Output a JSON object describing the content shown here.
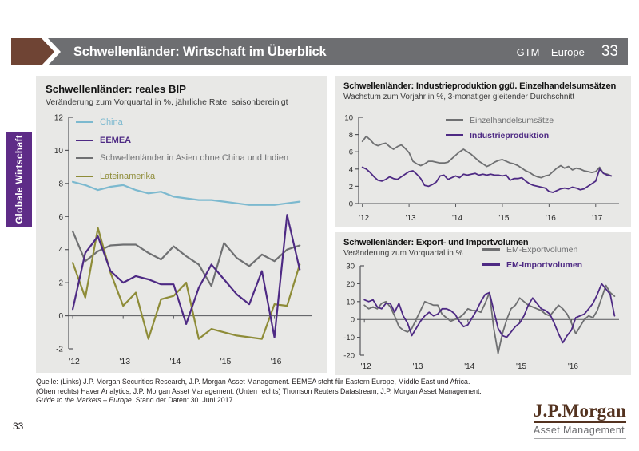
{
  "header": {
    "title": "Schwellenländer: Wirtschaft im Überblick",
    "edition": "GTM – Europe",
    "page": "33",
    "bar_color": "#6d6e71",
    "chevron_color": "#6F4434"
  },
  "side_tab": {
    "label": "Globale Wirtschaft",
    "color": "#5E2C87"
  },
  "footer": {
    "line1": "Quelle: (Links) J.P. Morgan Securities Research, J.P. Morgan Asset Management. EEMEA steht für Eastern Europe, Middle East und Africa.",
    "line2": "(Oben rechts) Haver Analytics, J.P. Morgan Asset Management. (Unten rechts) Thomson Reuters Datastream, J.P. Morgan Asset Management.",
    "line3_italic": "Guide to the Markets – Europe.",
    "line3_rest": " Stand der Daten: 30. Juni 2017.",
    "page_number": "33"
  },
  "logo": {
    "brand": "J.P.Morgan",
    "division": "Asset Management",
    "brand_color": "#53321F"
  },
  "chart_data": [
    {
      "type": "line",
      "title": "Schwellenländer: reales BIP",
      "subtitle": "Veränderung zum Vorquartal in %, jährliche Rate, saisonbereinigt",
      "ylim": [
        -2,
        12
      ],
      "yticks": [
        -2,
        0,
        2,
        4,
        6,
        8,
        10,
        12
      ],
      "xlim": [
        2011.92,
        2016.75
      ],
      "x_ticks": [
        2012,
        2013,
        2014,
        2015,
        2016
      ],
      "x_tick_labels": [
        "'12",
        "'13",
        "'14",
        "'15",
        "'16"
      ],
      "x_start": 2012.0,
      "x_step": 0.25,
      "grid": false,
      "legend_position": "upper-left-inside",
      "series": [
        {
          "name": "China",
          "color": "#7CB9CF",
          "bold": false,
          "values": [
            8.1,
            7.9,
            7.6,
            7.8,
            7.9,
            7.6,
            7.4,
            7.5,
            7.2,
            7.1,
            7.0,
            7.0,
            6.9,
            6.8,
            6.7,
            6.7,
            6.7,
            6.8,
            6.9
          ]
        },
        {
          "name": "EEMEA",
          "color": "#4E2A84",
          "bold": true,
          "values": [
            0.4,
            3.8,
            4.8,
            2.7,
            2.0,
            2.4,
            2.2,
            1.9,
            1.9,
            -0.5,
            1.7,
            3.1,
            2.2,
            1.3,
            0.7,
            2.7,
            -1.3,
            6.1,
            2.8
          ]
        },
        {
          "name": "Schwellenländer in Asien ohne China und Indien",
          "color": "#6F7072",
          "bold": false,
          "values": [
            5.1,
            3.3,
            3.9,
            4.25,
            4.3,
            4.3,
            3.8,
            3.4,
            4.2,
            3.6,
            3.1,
            1.8,
            4.4,
            3.5,
            3.0,
            3.7,
            3.3,
            4.0,
            4.25
          ]
        },
        {
          "name": "Lateinamerika",
          "color": "#8E8C38",
          "bold": false,
          "values": [
            3.2,
            1.1,
            5.3,
            2.6,
            0.6,
            1.4,
            -1.4,
            1.0,
            1.2,
            2.0,
            -1.4,
            -0.8,
            -1.0,
            -1.2,
            -1.3,
            -1.4,
            0.7,
            0.6,
            3.1
          ]
        }
      ]
    },
    {
      "type": "line",
      "title": "Schwellenländer: Industrieproduktion ggü. Einzelhandelsumsätzen",
      "subtitle": "Wachstum zum Vorjahr in %, 3-monatiger gleitender Durchschnitt",
      "ylim": [
        0,
        10
      ],
      "yticks": [
        0,
        2,
        4,
        6,
        8,
        10
      ],
      "xlim": [
        2011.92,
        2017.5
      ],
      "x_ticks": [
        2012,
        2013,
        2014,
        2015,
        2016,
        2017
      ],
      "x_tick_labels": [
        "'12",
        "'13",
        "'14",
        "'15",
        "'16",
        "'17"
      ],
      "x_start": 2012.0,
      "x_step": 0.083333,
      "grid": false,
      "legend_position": "upper-center-inside",
      "series": [
        {
          "name": "Einzelhandelsumsätze",
          "color": "#6F7072",
          "bold": false,
          "values": [
            7.2,
            7.8,
            7.4,
            6.9,
            6.7,
            6.9,
            7.0,
            6.6,
            6.3,
            6.6,
            6.8,
            6.4,
            5.9,
            4.9,
            4.6,
            4.4,
            4.6,
            4.9,
            4.9,
            4.8,
            4.7,
            4.7,
            4.8,
            5.2,
            5.6,
            6.0,
            6.3,
            6.0,
            5.7,
            5.3,
            4.9,
            4.6,
            4.3,
            4.5,
            4.8,
            5.0,
            5.1,
            4.9,
            4.7,
            4.6,
            4.4,
            4.1,
            3.8,
            3.6,
            3.3,
            3.1,
            3.0,
            3.2,
            3.3,
            3.7,
            4.1,
            4.4,
            4.1,
            4.3,
            3.9,
            4.1,
            4.0,
            3.8,
            3.7,
            3.6,
            3.7,
            4.2,
            3.5,
            3.4,
            3.2
          ]
        },
        {
          "name": "Industrieproduktion",
          "color": "#4E2A84",
          "bold": true,
          "values": [
            4.2,
            4.0,
            3.6,
            3.1,
            2.7,
            2.6,
            2.8,
            3.1,
            2.9,
            2.8,
            3.1,
            3.4,
            3.7,
            3.8,
            3.4,
            2.9,
            2.1,
            2.0,
            2.2,
            2.5,
            3.2,
            3.3,
            2.8,
            3.0,
            3.2,
            3.0,
            3.4,
            3.3,
            3.4,
            3.5,
            3.3,
            3.4,
            3.3,
            3.4,
            3.3,
            3.3,
            3.2,
            3.3,
            2.7,
            2.9,
            2.9,
            3.0,
            2.6,
            2.3,
            2.1,
            2.0,
            1.9,
            1.8,
            1.4,
            1.3,
            1.5,
            1.7,
            1.8,
            1.7,
            1.9,
            1.8,
            1.6,
            1.7,
            2.0,
            2.3,
            2.6,
            4.0,
            3.5,
            3.3,
            3.2
          ]
        }
      ]
    },
    {
      "type": "line",
      "title": "Schwellenländer: Export- und Importvolumen",
      "subtitle": "Veränderung zum Vorquartal in %",
      "ylim": [
        -20,
        30
      ],
      "yticks": [
        -20,
        -10,
        0,
        10,
        20,
        30
      ],
      "xlim": [
        2011.92,
        2016.92
      ],
      "x_ticks": [
        2012,
        2013,
        2014,
        2015,
        2016
      ],
      "x_tick_labels": [
        "'12",
        "'13",
        "'14",
        "'15",
        "'16"
      ],
      "x_start": 2012.0,
      "x_step": 0.083333,
      "grid": false,
      "legend_position": "upper-right-inside",
      "series": [
        {
          "name": "EM-Exportvolumen",
          "color": "#6F7072",
          "bold": false,
          "values": [
            8,
            6,
            7,
            6,
            9,
            10,
            7,
            2,
            -4,
            -6,
            -7,
            -5,
            0,
            5,
            10,
            9,
            8,
            8,
            3,
            1,
            -1,
            0,
            1,
            3,
            6,
            5,
            5,
            4,
            9,
            15,
            -5,
            -19,
            -8,
            0,
            6,
            8,
            12,
            10,
            8,
            7,
            6,
            5,
            3,
            2,
            5,
            8,
            6,
            3,
            -2,
            -8,
            -4,
            0,
            2,
            1,
            5,
            12,
            19,
            15,
            13
          ]
        },
        {
          "name": "EM-Importvolumen",
          "color": "#4E2A84",
          "bold": true,
          "values": [
            11,
            10,
            11,
            7,
            6,
            9,
            9,
            4,
            9,
            2,
            -2,
            -9,
            -5,
            -1,
            2,
            4,
            2,
            3,
            6,
            6,
            5,
            3,
            -1,
            -4,
            -3,
            1,
            5,
            10,
            14,
            15,
            5,
            -5,
            -9,
            -10,
            -7,
            -4,
            -2,
            2,
            8,
            12,
            9,
            6,
            5,
            3,
            -2,
            -8,
            -13,
            -9,
            -6,
            1,
            2,
            3,
            6,
            9,
            14,
            20,
            17,
            14,
            2
          ]
        }
      ]
    }
  ]
}
